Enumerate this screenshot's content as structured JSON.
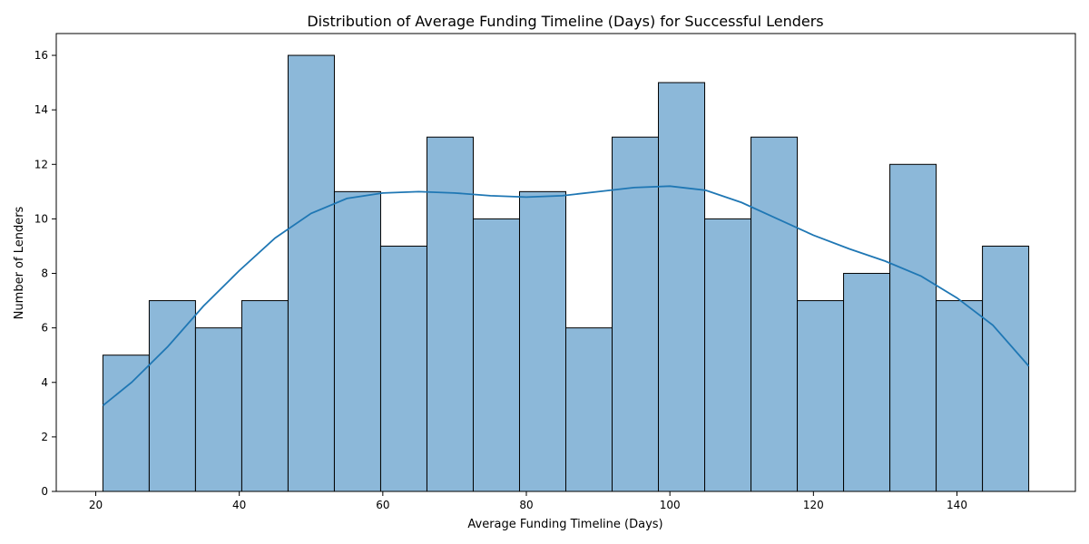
{
  "chart_data": {
    "type": "bar",
    "title": "Distribution of Average Funding Timeline (Days) for Successful Lenders",
    "xlabel": "Average Funding Timeline (Days)",
    "ylabel": "Number of Lenders",
    "xlim": [
      14.5,
      156.5
    ],
    "ylim": [
      0,
      16.8
    ],
    "xticks": [
      20,
      40,
      60,
      80,
      100,
      120,
      140
    ],
    "yticks": [
      0,
      2,
      4,
      6,
      8,
      10,
      12,
      14,
      16
    ],
    "grid": false,
    "bins": [
      {
        "start": 21.0,
        "end": 27.45,
        "count": 5
      },
      {
        "start": 27.45,
        "end": 33.9,
        "count": 7
      },
      {
        "start": 33.9,
        "end": 40.35,
        "count": 6
      },
      {
        "start": 40.35,
        "end": 46.8,
        "count": 7
      },
      {
        "start": 46.8,
        "end": 53.25,
        "count": 16
      },
      {
        "start": 53.25,
        "end": 59.7,
        "count": 11
      },
      {
        "start": 59.7,
        "end": 66.15,
        "count": 9
      },
      {
        "start": 66.15,
        "end": 72.6,
        "count": 13
      },
      {
        "start": 72.6,
        "end": 79.05,
        "count": 10
      },
      {
        "start": 79.05,
        "end": 85.5,
        "count": 11
      },
      {
        "start": 85.5,
        "end": 91.95,
        "count": 6
      },
      {
        "start": 91.95,
        "end": 98.4,
        "count": 13
      },
      {
        "start": 98.4,
        "end": 104.85,
        "count": 15
      },
      {
        "start": 104.85,
        "end": 111.3,
        "count": 10
      },
      {
        "start": 111.3,
        "end": 117.75,
        "count": 13
      },
      {
        "start": 117.75,
        "end": 124.2,
        "count": 7
      },
      {
        "start": 124.2,
        "end": 130.65,
        "count": 8
      },
      {
        "start": 130.65,
        "end": 137.1,
        "count": 12
      },
      {
        "start": 137.1,
        "end": 143.55,
        "count": 7
      },
      {
        "start": 143.55,
        "end": 150.0,
        "count": 9
      }
    ],
    "kde": {
      "x": [
        21,
        25,
        30,
        35,
        40,
        45,
        50,
        55,
        60,
        65,
        70,
        75,
        80,
        85,
        90,
        95,
        100,
        105,
        110,
        115,
        120,
        125,
        130,
        135,
        140,
        145,
        150
      ],
      "y": [
        3.15,
        4.0,
        5.3,
        6.8,
        8.1,
        9.3,
        10.2,
        10.75,
        10.95,
        11.0,
        10.95,
        10.85,
        10.8,
        10.85,
        11.0,
        11.15,
        11.2,
        11.05,
        10.6,
        10.0,
        9.4,
        8.9,
        8.45,
        7.9,
        7.1,
        6.1,
        4.6
      ]
    },
    "colors": {
      "bar_fill": "#8cb8d9",
      "bar_edge": "#000000",
      "kde_line": "#1f77b4"
    }
  }
}
